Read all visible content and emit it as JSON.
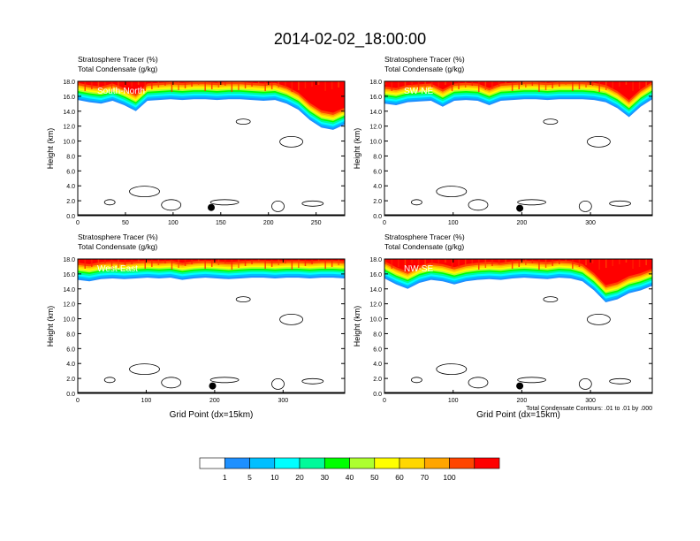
{
  "title": "2014-02-02_18:00:00",
  "colorbar": {
    "levels": [
      "1",
      "5",
      "10",
      "20",
      "30",
      "40",
      "50",
      "60",
      "70",
      "100"
    ],
    "colors": [
      "#ffffff",
      "#1e90ff",
      "#00bfff",
      "#00ffff",
      "#00fa9a",
      "#00ff00",
      "#adff2f",
      "#ffff00",
      "#ffd700",
      "#ffa500",
      "#ff4500",
      "#ff0000"
    ]
  },
  "chart_data": [
    {
      "type": "contour",
      "label": "South-North",
      "header_line1": "Stratosphere Tracer   (%)",
      "header_line2": "Total Condensate   (g/kg)",
      "ylabel": "Height (km)",
      "xlabel": "",
      "xlim": [
        0,
        280
      ],
      "ylim": [
        0,
        18
      ],
      "xticks": [
        "0",
        "50",
        "100",
        "150",
        "200",
        "250"
      ],
      "xtick_values": [
        0,
        50,
        100,
        150,
        200,
        250
      ],
      "yticks": [
        "0.0",
        "2.0",
        "4.0",
        "6.0",
        "8.0",
        "10.0",
        "12.0",
        "14.0",
        "16.0",
        "18.0"
      ],
      "tracer_base_km": [
        15.5,
        15.2,
        15.0,
        15.4,
        14.8,
        14.0,
        15.4,
        15.5,
        15.6,
        15.5,
        15.6,
        15.6,
        15.5,
        15.6,
        15.6,
        15.5,
        15.4,
        15.5,
        15.0,
        14.2,
        12.8,
        11.8,
        11.5,
        12.2
      ],
      "marker": {
        "x": 140,
        "y": 1.1
      }
    },
    {
      "type": "contour",
      "label": "SW-NE",
      "header_line1": "Stratosphere Tracer   (%)",
      "header_line2": "Total Condensate   (g/kg)",
      "ylabel": "Height (km)",
      "xlabel": "",
      "xlim": [
        0,
        390
      ],
      "ylim": [
        0,
        18
      ],
      "xticks": [
        "0",
        "100",
        "200",
        "300"
      ],
      "xtick_values": [
        0,
        100,
        200,
        300
      ],
      "yticks": [
        "0.0",
        "2.0",
        "4.0",
        "6.0",
        "8.0",
        "10.0",
        "12.0",
        "14.0",
        "16.0",
        "18.0"
      ],
      "tracer_base_km": [
        15.0,
        14.8,
        15.2,
        15.3,
        15.4,
        14.6,
        15.4,
        15.5,
        15.4,
        14.8,
        15.4,
        15.5,
        15.6,
        15.6,
        15.5,
        15.6,
        15.6,
        15.6,
        15.5,
        15.2,
        14.4,
        13.2,
        14.6,
        15.6
      ],
      "marker": {
        "x": 197,
        "y": 1.0
      }
    },
    {
      "type": "contour",
      "label": "West-East",
      "header_line1": "Stratosphere Tracer   (%)",
      "header_line2": "Total Condensate   (g/kg)",
      "ylabel": "Height (km)",
      "xlabel": "Grid Point (dx=15km)",
      "xlim": [
        0,
        390
      ],
      "ylim": [
        0,
        18
      ],
      "xticks": [
        "0",
        "100",
        "200",
        "300"
      ],
      "xtick_values": [
        0,
        100,
        200,
        300
      ],
      "yticks": [
        "0.0",
        "2.0",
        "4.0",
        "6.0",
        "8.0",
        "10.0",
        "12.0",
        "14.0",
        "16.0",
        "18.0"
      ],
      "tracer_base_km": [
        15.2,
        15.0,
        15.3,
        15.4,
        15.3,
        15.4,
        15.5,
        15.4,
        15.5,
        15.2,
        15.4,
        15.5,
        15.4,
        15.3,
        15.4,
        15.5,
        15.5,
        15.4,
        15.5,
        15.5,
        15.4,
        15.5,
        15.5,
        15.4
      ],
      "marker": {
        "x": 197,
        "y": 1.0
      }
    },
    {
      "type": "contour",
      "label": "NW-SE",
      "header_line1": "Stratosphere Tracer   (%)",
      "header_line2": "Total Condensate   (g/kg)",
      "ylabel": "Height (km)",
      "xlabel": "Grid Point (dx=15km)",
      "footnote": "Total Condensate Contours: .01 to .01 by .000",
      "xlim": [
        0,
        390
      ],
      "ylim": [
        0,
        18
      ],
      "xticks": [
        "0",
        "100",
        "200",
        "300"
      ],
      "xtick_values": [
        0,
        100,
        200,
        300
      ],
      "yticks": [
        "0.0",
        "2.0",
        "4.0",
        "6.0",
        "8.0",
        "10.0",
        "12.0",
        "14.0",
        "16.0",
        "18.0"
      ],
      "tracer_base_km": [
        15.4,
        14.6,
        14.0,
        14.8,
        15.2,
        15.0,
        14.6,
        15.0,
        15.2,
        15.3,
        15.2,
        15.4,
        15.5,
        15.4,
        15.3,
        15.5,
        15.4,
        15.0,
        13.8,
        12.2,
        12.6,
        13.4,
        13.8,
        14.4
      ],
      "marker": {
        "x": 197,
        "y": 1.0
      }
    }
  ]
}
